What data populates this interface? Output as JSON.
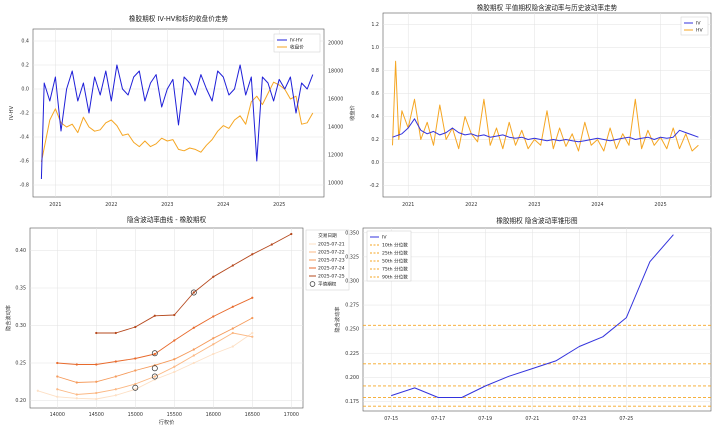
{
  "colors": {
    "iv_hv": "#1f1fd8",
    "price": "#f5a623",
    "iv": "#3333dd",
    "hv": "#f5a623",
    "red_axis": "#d62728",
    "blue_axis": "#1f77b4",
    "pct_line": "#f5a623"
  },
  "chart_data": [
    {
      "id": "tl",
      "type": "line",
      "title": "橡胶期权 IV-HV和标的收盘价走势",
      "ylabel": "IV-HV",
      "y2label": "收盘价",
      "xlim": [
        2020.6,
        2025.8
      ],
      "ylim": [
        -0.9,
        0.5
      ],
      "y2lim": [
        9000,
        21000
      ],
      "xticks": [
        "2021",
        "2022",
        "2023",
        "2024",
        "2025"
      ],
      "yticks": [
        "-0.8",
        "-0.6",
        "-0.4",
        "-0.2",
        "0.0",
        "0.2",
        "0.4"
      ],
      "y2ticks": [
        "10000",
        "12000",
        "14000",
        "16000",
        "18000",
        "20000"
      ],
      "legend": [
        "IV-HV",
        "收盘价"
      ],
      "series": [
        {
          "name": "IV-HV",
          "x": [
            2020.75,
            2020.8,
            2020.9,
            2021.0,
            2021.1,
            2021.2,
            2021.3,
            2021.4,
            2021.5,
            2021.6,
            2021.7,
            2021.8,
            2021.9,
            2022.0,
            2022.1,
            2022.2,
            2022.3,
            2022.4,
            2022.5,
            2022.6,
            2022.7,
            2022.8,
            2022.9,
            2023.0,
            2023.1,
            2023.2,
            2023.3,
            2023.4,
            2023.5,
            2023.6,
            2023.7,
            2023.8,
            2023.9,
            2024.0,
            2024.1,
            2024.2,
            2024.3,
            2024.4,
            2024.5,
            2024.6,
            2024.7,
            2024.8,
            2024.9,
            2025.0,
            2025.1,
            2025.2,
            2025.3,
            2025.4,
            2025.5,
            2025.6
          ],
          "y": [
            -0.75,
            0.05,
            -0.1,
            0.1,
            -0.35,
            0.0,
            0.15,
            -0.1,
            0.05,
            -0.2,
            0.1,
            -0.05,
            0.15,
            -0.1,
            0.2,
            0.0,
            -0.05,
            0.1,
            0.15,
            -0.1,
            0.05,
            0.12,
            -0.15,
            0.0,
            0.08,
            -0.3,
            0.1,
            0.05,
            -0.05,
            0.12,
            0.0,
            -0.1,
            0.15,
            0.1,
            -0.05,
            0.0,
            0.2,
            -0.05,
            0.1,
            -0.6,
            0.1,
            0.05,
            -0.1,
            0.08,
            0.0,
            0.1,
            -0.2,
            0.05,
            0.0,
            0.12
          ]
        },
        {
          "name": "收盘价",
          "x": [
            2020.75,
            2020.9,
            2021.0,
            2021.1,
            2021.2,
            2021.3,
            2021.4,
            2021.5,
            2021.6,
            2021.7,
            2021.8,
            2021.9,
            2022.0,
            2022.1,
            2022.2,
            2022.3,
            2022.4,
            2022.5,
            2022.6,
            2022.7,
            2022.8,
            2022.9,
            2023.0,
            2023.1,
            2023.2,
            2023.3,
            2023.4,
            2023.5,
            2023.6,
            2023.7,
            2023.8,
            2023.9,
            2024.0,
            2024.1,
            2024.2,
            2024.3,
            2024.4,
            2024.5,
            2024.6,
            2024.7,
            2024.8,
            2024.9,
            2025.0,
            2025.1,
            2025.2,
            2025.3,
            2025.4,
            2025.5,
            2025.6
          ],
          "y": [
            11500,
            14500,
            15300,
            14300,
            14000,
            14200,
            13600,
            14700,
            14000,
            13700,
            13800,
            14300,
            14500,
            14100,
            13400,
            13500,
            12900,
            12600,
            13000,
            12600,
            12800,
            13200,
            13000,
            13100,
            12400,
            12300,
            12500,
            12400,
            12200,
            12700,
            13100,
            13700,
            14100,
            13900,
            14500,
            14800,
            14200,
            15800,
            16200,
            15600,
            16400,
            17200,
            17000,
            16700,
            16000,
            16200,
            14200,
            14300,
            15000
          ]
        }
      ]
    },
    {
      "id": "tr",
      "type": "line",
      "title": "橡胶期权 平值期权隐含波动率与历史波动率走势",
      "xlim": [
        2020.6,
        2025.8
      ],
      "ylim": [
        -0.3,
        1.3
      ],
      "xticks": [
        "2021",
        "2022",
        "2023",
        "2024",
        "2025"
      ],
      "yticks": [
        "-0.2",
        "0.0",
        "0.2",
        "0.4",
        "0.6",
        "0.8",
        "1.0",
        "1.2"
      ],
      "legend": [
        "IV",
        "HV"
      ],
      "series": [
        {
          "name": "IV",
          "x": [
            2020.75,
            2020.9,
            2021.0,
            2021.1,
            2021.2,
            2021.3,
            2021.4,
            2021.5,
            2021.6,
            2021.7,
            2021.8,
            2021.9,
            2022.0,
            2022.1,
            2022.2,
            2022.3,
            2022.4,
            2022.5,
            2022.6,
            2022.7,
            2022.8,
            2022.9,
            2023.0,
            2023.1,
            2023.2,
            2023.3,
            2023.4,
            2023.5,
            2023.6,
            2023.7,
            2023.8,
            2023.9,
            2024.0,
            2024.1,
            2024.2,
            2024.3,
            2024.4,
            2024.5,
            2024.6,
            2024.7,
            2024.8,
            2024.9,
            2025.0,
            2025.1,
            2025.2,
            2025.3,
            2025.4,
            2025.5,
            2025.6
          ],
          "y": [
            0.22,
            0.25,
            0.3,
            0.38,
            0.28,
            0.25,
            0.27,
            0.24,
            0.26,
            0.3,
            0.26,
            0.24,
            0.25,
            0.23,
            0.24,
            0.22,
            0.23,
            0.24,
            0.22,
            0.21,
            0.22,
            0.2,
            0.21,
            0.2,
            0.19,
            0.2,
            0.19,
            0.2,
            0.19,
            0.18,
            0.19,
            0.2,
            0.21,
            0.2,
            0.19,
            0.2,
            0.21,
            0.22,
            0.2,
            0.21,
            0.22,
            0.2,
            0.22,
            0.21,
            0.22,
            0.28,
            0.26,
            0.24,
            0.22
          ]
        },
        {
          "name": "HV",
          "x": [
            2020.75,
            2020.8,
            2020.85,
            2020.9,
            2021.0,
            2021.1,
            2021.2,
            2021.3,
            2021.4,
            2021.5,
            2021.6,
            2021.7,
            2021.8,
            2021.9,
            2022.0,
            2022.1,
            2022.2,
            2022.3,
            2022.4,
            2022.5,
            2022.6,
            2022.7,
            2022.8,
            2022.9,
            2023.0,
            2023.1,
            2023.2,
            2023.3,
            2023.4,
            2023.5,
            2023.6,
            2023.7,
            2023.8,
            2023.9,
            2024.0,
            2024.1,
            2024.2,
            2024.3,
            2024.4,
            2024.5,
            2024.6,
            2024.7,
            2024.8,
            2024.9,
            2025.0,
            2025.1,
            2025.2,
            2025.3,
            2025.4,
            2025.5,
            2025.6
          ],
          "y": [
            0.15,
            0.88,
            0.2,
            0.45,
            0.3,
            0.55,
            0.2,
            0.35,
            0.15,
            0.5,
            0.2,
            0.3,
            0.12,
            0.4,
            0.25,
            0.18,
            0.55,
            0.15,
            0.3,
            0.12,
            0.35,
            0.15,
            0.28,
            0.12,
            0.2,
            0.15,
            0.45,
            0.12,
            0.3,
            0.14,
            0.25,
            0.1,
            0.35,
            0.15,
            0.2,
            0.1,
            0.3,
            0.12,
            0.25,
            0.15,
            0.55,
            0.12,
            0.28,
            0.15,
            0.22,
            0.12,
            0.3,
            0.12,
            0.25,
            0.1,
            0.15
          ]
        }
      ]
    },
    {
      "id": "bl",
      "type": "line",
      "title": "隐含波动率曲线 - 橡胶期权",
      "xlabel": "行权价",
      "ylabel": "隐含波动率",
      "xlim": [
        13650,
        17150
      ],
      "ylim": [
        0.19,
        0.43
      ],
      "xticks": [
        "14000",
        "14500",
        "15000",
        "15500",
        "16000",
        "16500",
        "17000"
      ],
      "yticks": [
        "0.20",
        "0.25",
        "0.30",
        "0.35",
        "0.40"
      ],
      "legend_title": "交易日期",
      "legend": [
        "2025-07-21",
        "2025-07-22",
        "2025-07-23",
        "2025-07-24",
        "2025-07-25",
        "平值期权"
      ],
      "series": [
        {
          "name": "2025-07-21",
          "color": "#fde0c5",
          "x": [
            13750,
            14000,
            14250,
            14500,
            14750,
            15000,
            15250,
            15500,
            15750,
            16000,
            16250,
            16500
          ],
          "y": [
            0.213,
            0.205,
            0.203,
            0.202,
            0.207,
            0.215,
            0.228,
            0.238,
            0.25,
            0.262,
            0.272,
            0.29
          ]
        },
        {
          "name": "2025-07-22",
          "color": "#fbb884",
          "x": [
            14000,
            14250,
            14500,
            14750,
            15000,
            15250,
            15500,
            15750,
            16000,
            16250,
            16500
          ],
          "y": [
            0.215,
            0.208,
            0.21,
            0.215,
            0.222,
            0.232,
            0.245,
            0.26,
            0.275,
            0.29,
            0.285
          ]
        },
        {
          "name": "2025-07-23",
          "color": "#f59a5a",
          "x": [
            14000,
            14250,
            14500,
            14750,
            15000,
            15250,
            15500,
            15750,
            16000,
            16250,
            16500
          ],
          "y": [
            0.232,
            0.224,
            0.225,
            0.232,
            0.24,
            0.247,
            0.255,
            0.268,
            0.283,
            0.296,
            0.31
          ]
        },
        {
          "name": "2025-07-24",
          "color": "#e86a2c",
          "x": [
            14000,
            14250,
            14500,
            14750,
            15000,
            15250,
            15500,
            15750,
            16000,
            16250,
            16500
          ],
          "y": [
            0.25,
            0.248,
            0.248,
            0.252,
            0.256,
            0.262,
            0.28,
            0.297,
            0.312,
            0.325,
            0.337
          ]
        },
        {
          "name": "2025-07-25",
          "color": "#b5481d",
          "x": [
            14500,
            14750,
            15000,
            15250,
            15500,
            15750,
            16000,
            16250,
            16500,
            16750,
            17000
          ],
          "y": [
            0.29,
            0.29,
            0.298,
            0.313,
            0.314,
            0.344,
            0.365,
            0.38,
            0.395,
            0.408,
            0.422
          ]
        }
      ],
      "atm_points": [
        {
          "x": 15000,
          "y": 0.217
        },
        {
          "x": 15250,
          "y": 0.232
        },
        {
          "x": 15250,
          "y": 0.243
        },
        {
          "x": 15250,
          "y": 0.263
        },
        {
          "x": 15750,
          "y": 0.344
        }
      ]
    },
    {
      "id": "br",
      "type": "line",
      "title": "橡胶期权 隐含波动率锥形图",
      "ylabel": "隐含波动率",
      "ylim": [
        0.165,
        0.355
      ],
      "xticks": [
        "07-15",
        "07-17",
        "07-19",
        "07-21",
        "07-23",
        "07-25"
      ],
      "yticks": [
        "0.175",
        "0.200",
        "0.225",
        "0.250",
        "0.275",
        "0.300",
        "0.325",
        "0.350"
      ],
      "legend": [
        "IV",
        "10th 分位数",
        "25th 分位数",
        "50th 分位数",
        "75th 分位数",
        "90th 分位数"
      ],
      "series": [
        {
          "name": "IV",
          "x": [
            0,
            1,
            2,
            3,
            4,
            5,
            6,
            7,
            8,
            9,
            10,
            11,
            12
          ],
          "y": [
            0.181,
            0.189,
            0.179,
            0.179,
            0.191,
            0.201,
            0.209,
            0.217,
            0.232,
            0.242,
            0.262,
            0.32,
            0.348
          ]
        }
      ],
      "quantiles": [
        {
          "name": "10th 分位数",
          "y": 0.17
        },
        {
          "name": "25th 分位数",
          "y": 0.179
        },
        {
          "name": "50th 分位数",
          "y": 0.191
        },
        {
          "name": "75th 分位数",
          "y": 0.214
        },
        {
          "name": "90th 分位数",
          "y": 0.254
        }
      ]
    }
  ]
}
